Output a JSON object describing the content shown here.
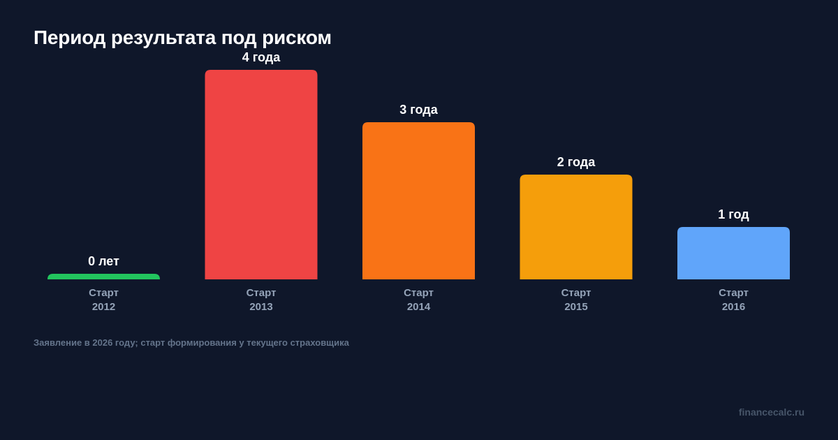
{
  "chart_data": {
    "type": "bar",
    "title": "Период результата под риском",
    "categories": [
      [
        "Старт",
        "2012"
      ],
      [
        "Старт",
        "2013"
      ],
      [
        "Старт",
        "2014"
      ],
      [
        "Старт",
        "2015"
      ],
      [
        "Старт",
        "2016"
      ]
    ],
    "values": [
      0,
      4,
      3,
      2,
      1
    ],
    "data_labels": [
      "0 лет",
      "4 года",
      "3 года",
      "2 года",
      "1 год"
    ],
    "colors": [
      "#22c55e",
      "#ef4444",
      "#f97316",
      "#f59e0b",
      "#60a5fa"
    ],
    "ylim": [
      0,
      4
    ],
    "grid": false,
    "legend": "none"
  },
  "footnote": "Заявление в 2026 году; старт формирования у текущего страховщика",
  "brand": "financecalc.ru"
}
